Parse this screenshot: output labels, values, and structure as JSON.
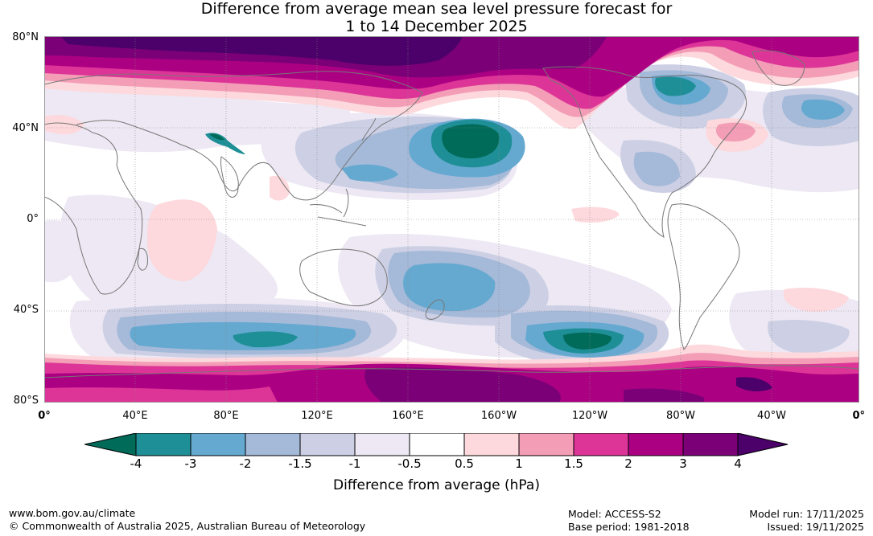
{
  "title_line1": "Difference from average mean sea level pressure forecast for",
  "title_line2": "1 to 14 December 2025",
  "lat_labels": [
    "80°N",
    "40°N",
    "0°",
    "40°S",
    "80°S"
  ],
  "lon_labels": [
    "0°",
    "40°E",
    "80°E",
    "120°E",
    "160°E",
    "160°W",
    "120°W",
    "80°W",
    "40°W",
    "0°"
  ],
  "colorbar": {
    "title": "Difference from average (hPa)",
    "tick_labels": [
      "-4",
      "-3",
      "-2",
      "-1.5",
      "-1",
      "-0.5",
      "0.5",
      "1",
      "1.5",
      "2",
      "3",
      "4"
    ],
    "colors": {
      "below_-4": "#006b59",
      "-4_-3": "#1f8f97",
      "-3_-2": "#65a9d0",
      "-2_-1.5": "#a5b9d8",
      "-1.5_-1": "#cdd0e5",
      "-1_-0.5": "#ede8f3",
      "-0.5_0.5": "#ffffff",
      "0.5_1": "#fdd8dc",
      "1_1.5": "#f49db6",
      "1.5_2": "#dd3597",
      "2_3": "#ac0083",
      "3_4": "#7b0077",
      "above_4": "#4b006a"
    }
  },
  "footer": {
    "website": "www.bom.gov.au/climate",
    "copyright": "© Commonwealth of Australia 2025, Australian Bureau of Meteorology",
    "model": "Model: ACCESS-S2",
    "base_period": "Base period: 1981-2018",
    "model_run": "Model run: 17/11/2025",
    "issued": "Issued: 19/11/2025"
  }
}
